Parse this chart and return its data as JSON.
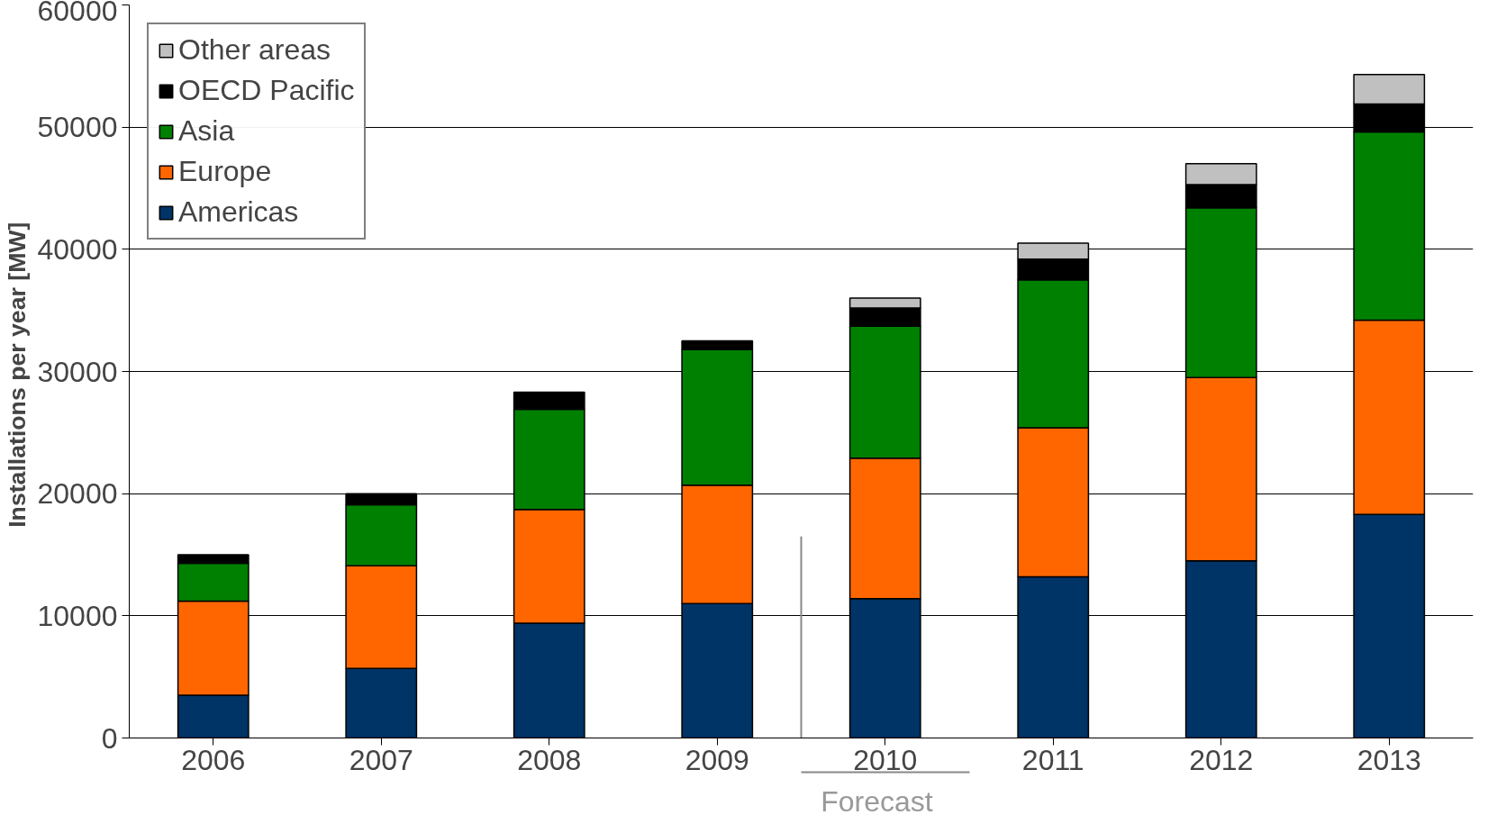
{
  "chart_data": {
    "type": "bar",
    "stacked": true,
    "ylabel": "Installations per year  [MW]",
    "x": [
      2006,
      2007,
      2008,
      2009,
      2010,
      2011,
      2012,
      2013
    ],
    "series": [
      {
        "name": "Americas",
        "color": "#003366",
        "values": [
          3500,
          5700,
          9400,
          11000,
          11400,
          13200,
          14500,
          18300
        ]
      },
      {
        "name": "Europe",
        "color": "#ff6600",
        "values": [
          7700,
          8400,
          9300,
          9700,
          11500,
          12200,
          15000,
          15900
        ]
      },
      {
        "name": "Asia",
        "color": "#008000",
        "values": [
          3100,
          5000,
          8200,
          11100,
          10800,
          12100,
          13900,
          15400
        ]
      },
      {
        "name": "OECD Pacific",
        "color": "#000000",
        "values": [
          700,
          900,
          1400,
          700,
          1500,
          1700,
          1900,
          2300
        ]
      },
      {
        "name": "Other areas",
        "color": "#c0c0c0",
        "values": [
          null,
          null,
          null,
          null,
          800,
          1300,
          1700,
          2400
        ]
      }
    ],
    "xlim": [
      2005.5,
      2013.5
    ],
    "xticks": [
      2006,
      2007,
      2008,
      2009,
      2010,
      2011,
      2012,
      2013
    ],
    "ylim": [
      0,
      60000
    ],
    "yticks": [
      0,
      10000,
      20000,
      30000,
      40000,
      50000,
      60000
    ],
    "grid": "y",
    "legend": "top left",
    "ref_lines": [
      {
        "axis": "x",
        "value": 2009.5,
        "label": "Forecast",
        "color": "#888888"
      }
    ]
  }
}
